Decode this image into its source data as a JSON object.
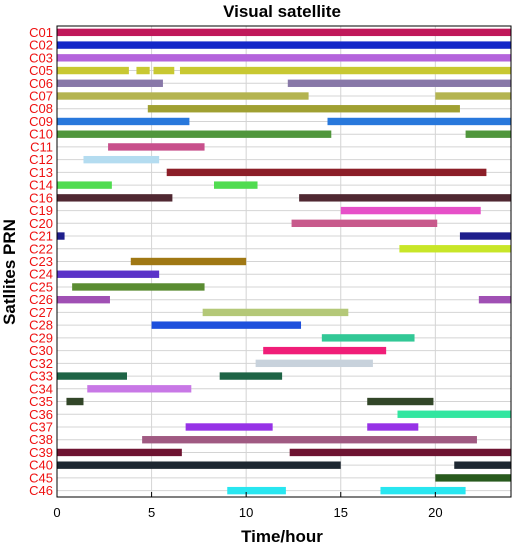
{
  "chart_data": {
    "type": "gantt",
    "title": "Visual satellite",
    "xlabel": "Time/hour",
    "ylabel": "Satllites PRN",
    "xlim": [
      0,
      24
    ],
    "xticks": [
      0,
      5,
      10,
      15,
      20
    ],
    "grid": true,
    "satellites": [
      {
        "prn": "C01",
        "color": "#c0185a",
        "intervals": [
          [
            0,
            24
          ]
        ]
      },
      {
        "prn": "C02",
        "color": "#1428c8",
        "intervals": [
          [
            0,
            24
          ]
        ]
      },
      {
        "prn": "C03",
        "color": "#b464dc",
        "intervals": [
          [
            0,
            24
          ]
        ]
      },
      {
        "prn": "C05",
        "color": "#c8c832",
        "intervals": [
          [
            0,
            3.8
          ],
          [
            4.2,
            4.9
          ],
          [
            5.1,
            6.2
          ],
          [
            6.5,
            24
          ]
        ]
      },
      {
        "prn": "C06",
        "color": "#8878a8",
        "intervals": [
          [
            0,
            5.6
          ],
          [
            12.2,
            24
          ]
        ]
      },
      {
        "prn": "C07",
        "color": "#b4b450",
        "intervals": [
          [
            0,
            13.3
          ],
          [
            20,
            24
          ]
        ]
      },
      {
        "prn": "C08",
        "color": "#a0a032",
        "intervals": [
          [
            4.8,
            21.3
          ]
        ]
      },
      {
        "prn": "C09",
        "color": "#2878dc",
        "intervals": [
          [
            0,
            7
          ],
          [
            14.3,
            24
          ]
        ]
      },
      {
        "prn": "C10",
        "color": "#50963c",
        "intervals": [
          [
            0,
            14.5
          ],
          [
            21.6,
            24
          ]
        ]
      },
      {
        "prn": "C11",
        "color": "#c8508c",
        "intervals": [
          [
            2.7,
            7.8
          ]
        ]
      },
      {
        "prn": "C12",
        "color": "#b4dcf0",
        "intervals": [
          [
            1.4,
            5.4
          ]
        ]
      },
      {
        "prn": "C13",
        "color": "#8c1e28",
        "intervals": [
          [
            5.8,
            22.7
          ]
        ]
      },
      {
        "prn": "C14",
        "color": "#50dc50",
        "intervals": [
          [
            0,
            2.9
          ],
          [
            8.3,
            10.6
          ]
        ]
      },
      {
        "prn": "C16",
        "color": "#502832",
        "intervals": [
          [
            0,
            6.1
          ],
          [
            12.8,
            24
          ]
        ]
      },
      {
        "prn": "C19",
        "color": "#e650c8",
        "intervals": [
          [
            15,
            22.4
          ]
        ]
      },
      {
        "prn": "C20",
        "color": "#c85a8c",
        "intervals": [
          [
            12.4,
            20.1
          ]
        ]
      },
      {
        "prn": "C21",
        "color": "#1e1e8c",
        "intervals": [
          [
            0,
            0.4
          ],
          [
            21.3,
            24
          ]
        ]
      },
      {
        "prn": "C22",
        "color": "#c8e628",
        "intervals": [
          [
            18.1,
            24
          ]
        ]
      },
      {
        "prn": "C23",
        "color": "#a07814",
        "intervals": [
          [
            3.9,
            10
          ]
        ]
      },
      {
        "prn": "C24",
        "color": "#5a32c8",
        "intervals": [
          [
            0,
            5.4
          ]
        ]
      },
      {
        "prn": "C25",
        "color": "#5a8c32",
        "intervals": [
          [
            0.8,
            7.8
          ]
        ]
      },
      {
        "prn": "C26",
        "color": "#a050b4",
        "intervals": [
          [
            0,
            2.8
          ],
          [
            22.3,
            24
          ]
        ]
      },
      {
        "prn": "C27",
        "color": "#b4c878",
        "intervals": [
          [
            7.7,
            15.4
          ]
        ]
      },
      {
        "prn": "C28",
        "color": "#1e50dc",
        "intervals": [
          [
            5,
            12.9
          ]
        ]
      },
      {
        "prn": "C29",
        "color": "#32c896",
        "intervals": [
          [
            14,
            18.9
          ]
        ]
      },
      {
        "prn": "C30",
        "color": "#f01e78",
        "intervals": [
          [
            10.9,
            17.4
          ]
        ]
      },
      {
        "prn": "C32",
        "color": "#c8d2dc",
        "intervals": [
          [
            10.5,
            16.7
          ]
        ]
      },
      {
        "prn": "C33",
        "color": "#1e6446",
        "intervals": [
          [
            0,
            3.7
          ],
          [
            8.6,
            11.9
          ]
        ]
      },
      {
        "prn": "C34",
        "color": "#c878e6",
        "intervals": [
          [
            1.6,
            7.1
          ]
        ]
      },
      {
        "prn": "C35",
        "color": "#324628",
        "intervals": [
          [
            0.5,
            1.4
          ],
          [
            16.4,
            19.9
          ]
        ]
      },
      {
        "prn": "C36",
        "color": "#32e6a0",
        "intervals": [
          [
            18,
            24
          ]
        ]
      },
      {
        "prn": "C37",
        "color": "#9632e6",
        "intervals": [
          [
            6.8,
            11.4
          ],
          [
            16.4,
            19.1
          ]
        ]
      },
      {
        "prn": "C38",
        "color": "#a05a82",
        "intervals": [
          [
            4.5,
            22.2
          ]
        ]
      },
      {
        "prn": "C39",
        "color": "#6e1432",
        "intervals": [
          [
            0,
            6.6
          ],
          [
            12.3,
            24
          ]
        ]
      },
      {
        "prn": "C40",
        "color": "#1e2832",
        "intervals": [
          [
            0,
            15
          ],
          [
            21,
            24
          ]
        ]
      },
      {
        "prn": "C45",
        "color": "#285a1e",
        "intervals": [
          [
            20,
            24
          ]
        ]
      },
      {
        "prn": "C46",
        "color": "#28e6f0",
        "intervals": [
          [
            9,
            12.1
          ],
          [
            17.1,
            21.6
          ]
        ]
      }
    ]
  }
}
